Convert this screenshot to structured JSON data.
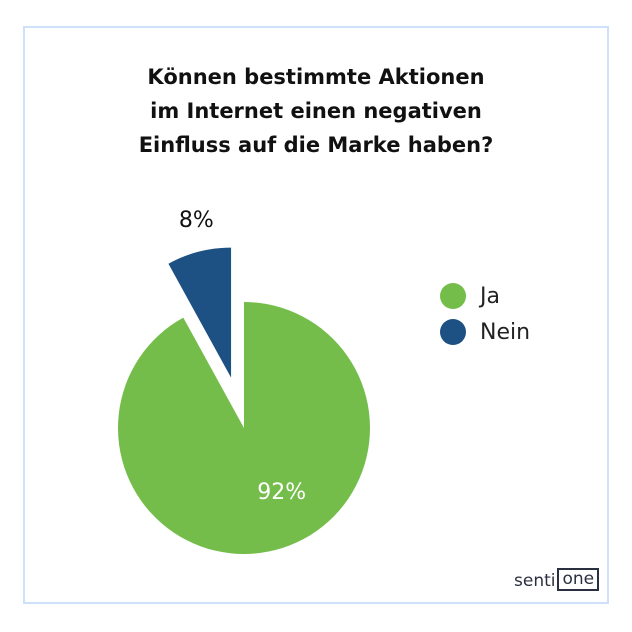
{
  "title_lines": [
    "Können bestimmte Aktionen",
    "im Internet einen negativen",
    "Einfluss auf die Marke haben?"
  ],
  "chart_data": {
    "type": "pie",
    "title": "Können bestimmte Aktionen im Internet einen negativen Einfluss auf die Marke haben?",
    "categories": [
      "Ja",
      "Nein"
    ],
    "values": [
      92,
      8
    ],
    "labels": [
      "92%",
      "8%"
    ],
    "colors": [
      "#74bd4b",
      "#1d5083"
    ],
    "exploded": [
      "Nein"
    ],
    "legend_position": "right"
  },
  "logo": {
    "text_a": "senti",
    "text_b": "one"
  }
}
